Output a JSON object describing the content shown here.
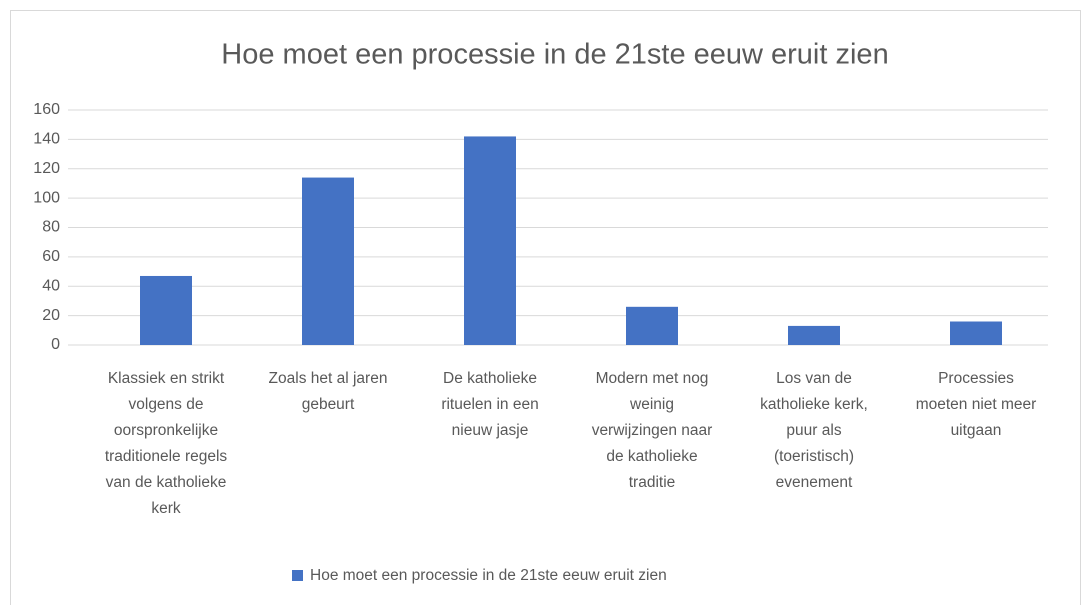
{
  "chart_data": {
    "type": "bar",
    "title": "Hoe moet een processie in de 21ste eeuw eruit zien",
    "categories": [
      "Klassiek en strikt volgens de oorspronkelijke traditionele regels van de katholieke kerk",
      "Zoals het al jaren gebeurt",
      "De katholieke rituelen in een nieuw jasje",
      "Modern met nog weinig verwijzingen naar de katholieke traditie",
      "Los van de katholieke kerk, puur als (toeristisch) evenement",
      "Processies moeten niet meer uitgaan"
    ],
    "series": [
      {
        "name": "Hoe moet een processie in de 21ste eeuw eruit zien",
        "color": "#4472c4",
        "values": [
          47,
          114,
          142,
          26,
          13,
          16
        ]
      }
    ],
    "ylim": [
      0,
      160
    ],
    "yticks": [
      0,
      20,
      40,
      60,
      80,
      100,
      120,
      140,
      160
    ],
    "grid": true,
    "legend": "bottom"
  }
}
